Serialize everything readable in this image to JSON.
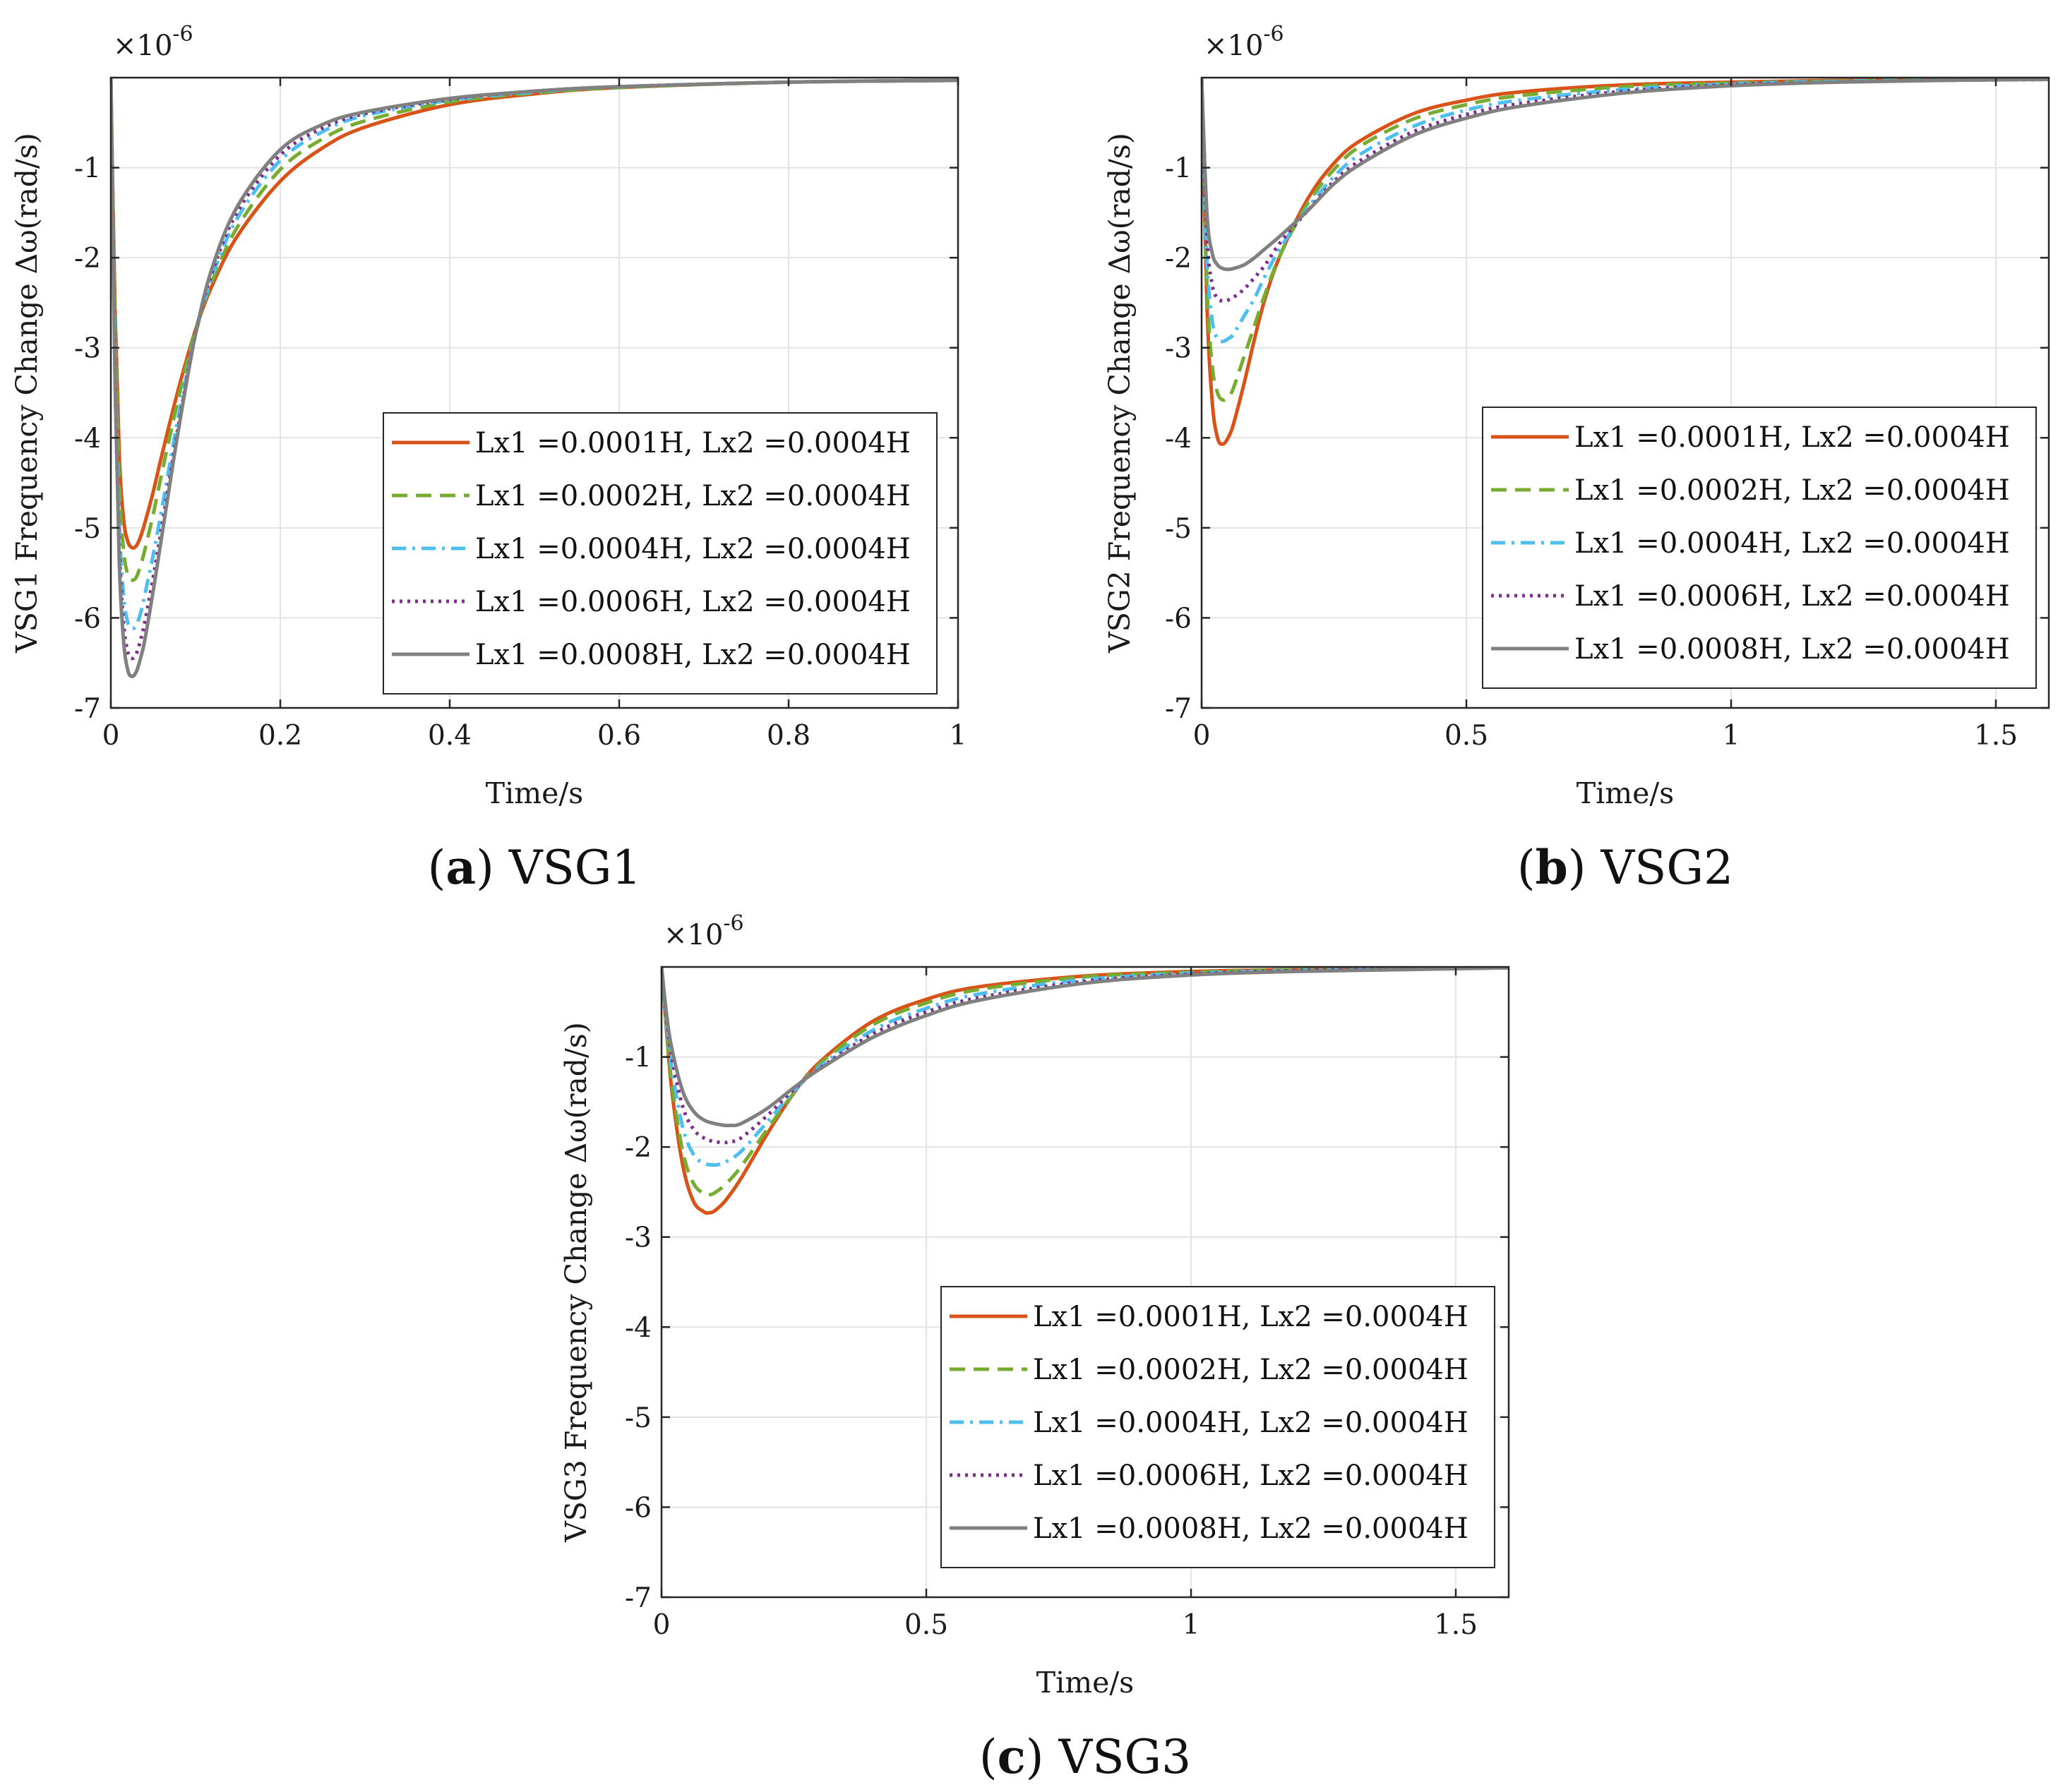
{
  "figure": {
    "colors": {
      "series": [
        "#D95319",
        "#77AC30",
        "#4DBEEE",
        "#7E2F8E",
        "#808080"
      ],
      "grid": "#e3e3e3",
      "axis": "#262626"
    }
  },
  "chart_data": [
    {
      "type": "line",
      "panel": "a",
      "caption_letter": "a",
      "caption_text": "VSG1",
      "title": "",
      "xlabel": "Time/s",
      "ylabel": "VSG1 Frequency Change Δω(rad/s)",
      "exponent_base": "×10",
      "exponent_power": "-6",
      "xlim": [
        0,
        1
      ],
      "ylim": [
        -7,
        0
      ],
      "xticks": [
        0,
        0.2,
        0.4,
        0.6,
        0.8,
        1
      ],
      "xtick_labels": [
        "0",
        "0.2",
        "0.4",
        "0.6",
        "0.8",
        "1"
      ],
      "yticks": [
        -7,
        -6,
        -5,
        -4,
        -3,
        -2,
        -1
      ],
      "ytick_labels": [
        "-7",
        "-6",
        "-5",
        "-4",
        "-3",
        "-2",
        "-1"
      ],
      "legend_position": "bottom-right",
      "series": [
        {
          "name": "Lx1 =0.0001H, Lx2 =0.0004H",
          "style": "solid",
          "x": [
            0,
            0.005,
            0.01,
            0.015,
            0.02,
            0.025,
            0.03,
            0.035,
            0.04,
            0.05,
            0.06,
            0.08,
            0.1,
            0.12,
            0.15,
            0.2,
            0.25,
            0.3,
            0.4,
            0.5,
            0.6,
            0.8,
            1.0
          ],
          "y": [
            0,
            -2.6,
            -4.2,
            -4.9,
            -5.15,
            -5.22,
            -5.2,
            -5.1,
            -4.95,
            -4.6,
            -4.2,
            -3.45,
            -2.8,
            -2.3,
            -1.75,
            -1.15,
            -0.78,
            -0.55,
            -0.3,
            -0.18,
            -0.11,
            -0.05,
            -0.03
          ]
        },
        {
          "name": "Lx1 =0.0002H, Lx2 =0.0004H",
          "style": "dashed",
          "x": [
            0,
            0.005,
            0.01,
            0.015,
            0.02,
            0.025,
            0.03,
            0.035,
            0.04,
            0.05,
            0.06,
            0.08,
            0.1,
            0.12,
            0.15,
            0.2,
            0.25,
            0.3,
            0.4,
            0.5,
            0.6,
            0.8,
            1.0
          ],
          "y": [
            0,
            -2.8,
            -4.5,
            -5.25,
            -5.52,
            -5.58,
            -5.55,
            -5.42,
            -5.25,
            -4.85,
            -4.4,
            -3.55,
            -2.8,
            -2.25,
            -1.65,
            -1.02,
            -0.68,
            -0.48,
            -0.27,
            -0.17,
            -0.11,
            -0.05,
            -0.03
          ]
        },
        {
          "name": "Lx1 =0.0004H, Lx2 =0.0004H",
          "style": "dashdot",
          "x": [
            0,
            0.005,
            0.01,
            0.015,
            0.02,
            0.025,
            0.03,
            0.035,
            0.04,
            0.05,
            0.06,
            0.08,
            0.1,
            0.12,
            0.15,
            0.2,
            0.25,
            0.3,
            0.4,
            0.5,
            0.6,
            0.8,
            1.0
          ],
          "y": [
            0,
            -3.1,
            -4.95,
            -5.75,
            -6.05,
            -6.12,
            -6.08,
            -5.95,
            -5.75,
            -5.3,
            -4.8,
            -3.75,
            -2.85,
            -2.2,
            -1.55,
            -0.92,
            -0.6,
            -0.42,
            -0.25,
            -0.16,
            -0.1,
            -0.05,
            -0.03
          ]
        },
        {
          "name": "Lx1 =0.0006H, Lx2 =0.0004H",
          "style": "dotted",
          "x": [
            0,
            0.005,
            0.01,
            0.015,
            0.02,
            0.025,
            0.03,
            0.035,
            0.04,
            0.05,
            0.06,
            0.08,
            0.1,
            0.12,
            0.15,
            0.2,
            0.25,
            0.3,
            0.4,
            0.5,
            0.6,
            0.8,
            1.0
          ],
          "y": [
            0,
            -3.3,
            -5.2,
            -6.05,
            -6.38,
            -6.45,
            -6.4,
            -6.25,
            -6.05,
            -5.55,
            -5.0,
            -3.85,
            -2.85,
            -2.15,
            -1.48,
            -0.86,
            -0.56,
            -0.4,
            -0.24,
            -0.15,
            -0.1,
            -0.05,
            -0.03
          ]
        },
        {
          "name": "Lx1 =0.0008H, Lx2 =0.0004H",
          "style": "solid",
          "x": [
            0,
            0.005,
            0.01,
            0.015,
            0.02,
            0.025,
            0.03,
            0.035,
            0.04,
            0.05,
            0.06,
            0.08,
            0.1,
            0.12,
            0.15,
            0.2,
            0.25,
            0.3,
            0.4,
            0.5,
            0.6,
            0.8,
            1.0
          ],
          "y": [
            0,
            -3.4,
            -5.4,
            -6.25,
            -6.58,
            -6.65,
            -6.6,
            -6.45,
            -6.25,
            -5.7,
            -5.1,
            -3.9,
            -2.85,
            -2.1,
            -1.42,
            -0.8,
            -0.52,
            -0.38,
            -0.23,
            -0.15,
            -0.1,
            -0.05,
            -0.03
          ]
        }
      ]
    },
    {
      "type": "line",
      "panel": "b",
      "caption_letter": "b",
      "caption_text": "VSG2",
      "title": "",
      "xlabel": "Time/s",
      "ylabel": "VSG2 Frequency Change Δω(rad/s)",
      "exponent_base": "×10",
      "exponent_power": "-6",
      "xlim": [
        0,
        1.6
      ],
      "ylim": [
        -7,
        0
      ],
      "xticks": [
        0,
        0.5,
        1,
        1.5
      ],
      "xtick_labels": [
        "0",
        "0.5",
        "1",
        "1.5"
      ],
      "yticks": [
        -7,
        -6,
        -5,
        -4,
        -3,
        -2,
        -1
      ],
      "ytick_labels": [
        "-7",
        "-6",
        "-5",
        "-4",
        "-3",
        "-2",
        "-1"
      ],
      "legend_position": "bottom-right",
      "series": [
        {
          "name": "Lx1 =0.0001H, Lx2 =0.0004H",
          "style": "solid",
          "x": [
            0,
            0.01,
            0.02,
            0.03,
            0.04,
            0.05,
            0.06,
            0.08,
            0.1,
            0.12,
            0.15,
            0.2,
            0.25,
            0.3,
            0.4,
            0.5,
            0.6,
            0.8,
            1.0,
            1.2,
            1.4,
            1.6
          ],
          "y": [
            0,
            -2.5,
            -3.6,
            -4.0,
            -4.07,
            -4.0,
            -3.85,
            -3.4,
            -2.9,
            -2.45,
            -1.95,
            -1.35,
            -0.95,
            -0.7,
            -0.4,
            -0.25,
            -0.16,
            -0.08,
            -0.05,
            -0.03,
            -0.02,
            -0.01
          ]
        },
        {
          "name": "Lx1 =0.0002H, Lx2 =0.0004H",
          "style": "dashed",
          "x": [
            0,
            0.01,
            0.02,
            0.03,
            0.04,
            0.05,
            0.06,
            0.08,
            0.1,
            0.12,
            0.15,
            0.2,
            0.25,
            0.3,
            0.4,
            0.5,
            0.6,
            0.8,
            1.0,
            1.2,
            1.4,
            1.6
          ],
          "y": [
            0,
            -2.3,
            -3.2,
            -3.5,
            -3.58,
            -3.55,
            -3.45,
            -3.1,
            -2.75,
            -2.4,
            -1.95,
            -1.4,
            -1.02,
            -0.76,
            -0.46,
            -0.3,
            -0.2,
            -0.1,
            -0.06,
            -0.04,
            -0.02,
            -0.01
          ]
        },
        {
          "name": "Lx1 =0.0004H, Lx2 =0.0004H",
          "style": "dashdot",
          "x": [
            0,
            0.01,
            0.02,
            0.03,
            0.04,
            0.05,
            0.06,
            0.08,
            0.1,
            0.12,
            0.15,
            0.2,
            0.25,
            0.3,
            0.4,
            0.5,
            0.6,
            0.8,
            1.0,
            1.2,
            1.4,
            1.6
          ],
          "y": [
            0,
            -2.0,
            -2.7,
            -2.9,
            -2.93,
            -2.9,
            -2.85,
            -2.65,
            -2.45,
            -2.2,
            -1.88,
            -1.45,
            -1.1,
            -0.85,
            -0.54,
            -0.36,
            -0.25,
            -0.13,
            -0.07,
            -0.04,
            -0.03,
            -0.02
          ]
        },
        {
          "name": "Lx1 =0.0006H, Lx2 =0.0004H",
          "style": "dotted",
          "x": [
            0,
            0.01,
            0.02,
            0.03,
            0.04,
            0.05,
            0.06,
            0.08,
            0.1,
            0.12,
            0.15,
            0.2,
            0.25,
            0.3,
            0.4,
            0.5,
            0.6,
            0.8,
            1.0,
            1.2,
            1.4,
            1.6
          ],
          "y": [
            0,
            -1.75,
            -2.3,
            -2.45,
            -2.48,
            -2.47,
            -2.44,
            -2.35,
            -2.22,
            -2.08,
            -1.82,
            -1.48,
            -1.15,
            -0.92,
            -0.6,
            -0.41,
            -0.29,
            -0.15,
            -0.08,
            -0.05,
            -0.03,
            -0.02
          ]
        },
        {
          "name": "Lx1 =0.0008H, Lx2 =0.0004H",
          "style": "solid",
          "x": [
            0,
            0.01,
            0.02,
            0.03,
            0.04,
            0.05,
            0.06,
            0.08,
            0.1,
            0.12,
            0.15,
            0.2,
            0.25,
            0.3,
            0.4,
            0.5,
            0.6,
            0.8,
            1.0,
            1.2,
            1.4,
            1.6
          ],
          "y": [
            0,
            -1.5,
            -1.95,
            -2.08,
            -2.12,
            -2.13,
            -2.12,
            -2.08,
            -2.0,
            -1.9,
            -1.75,
            -1.48,
            -1.18,
            -0.96,
            -0.64,
            -0.45,
            -0.32,
            -0.17,
            -0.09,
            -0.05,
            -0.03,
            -0.02
          ]
        }
      ]
    },
    {
      "type": "line",
      "panel": "c",
      "caption_letter": "c",
      "caption_text": "VSG3",
      "title": "",
      "xlabel": "Time/s",
      "ylabel": "VSG3 Frequency Change Δω(rad/s)",
      "exponent_base": "×10",
      "exponent_power": "-6",
      "xlim": [
        0,
        1.6
      ],
      "ylim": [
        -7,
        0
      ],
      "xticks": [
        0,
        0.5,
        1,
        1.5
      ],
      "xtick_labels": [
        "0",
        "0.5",
        "1",
        "1.5"
      ],
      "yticks": [
        -7,
        -6,
        -5,
        -4,
        -3,
        -2,
        -1
      ],
      "ytick_labels": [
        "-7",
        "-6",
        "-5",
        "-4",
        "-3",
        "-2",
        "-1"
      ],
      "legend_position": "bottom-right",
      "series": [
        {
          "name": "Lx1 =0.0001H, Lx2 =0.0004H",
          "style": "solid",
          "x": [
            0,
            0.01,
            0.02,
            0.04,
            0.06,
            0.08,
            0.09,
            0.1,
            0.12,
            0.15,
            0.2,
            0.25,
            0.3,
            0.4,
            0.5,
            0.6,
            0.8,
            1.0,
            1.2,
            1.4,
            1.6
          ],
          "y": [
            0,
            -0.75,
            -1.4,
            -2.2,
            -2.6,
            -2.72,
            -2.73,
            -2.71,
            -2.6,
            -2.35,
            -1.85,
            -1.4,
            -1.05,
            -0.6,
            -0.36,
            -0.22,
            -0.1,
            -0.05,
            -0.03,
            -0.02,
            -0.01
          ]
        },
        {
          "name": "Lx1 =0.0002H, Lx2 =0.0004H",
          "style": "dashed",
          "x": [
            0,
            0.01,
            0.02,
            0.04,
            0.06,
            0.08,
            0.09,
            0.1,
            0.12,
            0.15,
            0.2,
            0.25,
            0.3,
            0.4,
            0.5,
            0.6,
            0.8,
            1.0,
            1.2,
            1.4,
            1.6
          ],
          "y": [
            0,
            -0.72,
            -1.32,
            -2.05,
            -2.4,
            -2.52,
            -2.53,
            -2.51,
            -2.42,
            -2.22,
            -1.8,
            -1.4,
            -1.07,
            -0.64,
            -0.4,
            -0.25,
            -0.11,
            -0.06,
            -0.03,
            -0.02,
            -0.01
          ]
        },
        {
          "name": "Lx1 =0.0004H, Lx2 =0.0004H",
          "style": "dashdot",
          "x": [
            0,
            0.01,
            0.02,
            0.04,
            0.06,
            0.08,
            0.1,
            0.11,
            0.12,
            0.15,
            0.2,
            0.25,
            0.3,
            0.4,
            0.5,
            0.6,
            0.8,
            1.0,
            1.2,
            1.4,
            1.6
          ],
          "y": [
            0,
            -0.65,
            -1.15,
            -1.78,
            -2.08,
            -2.18,
            -2.2,
            -2.19,
            -2.17,
            -2.05,
            -1.72,
            -1.38,
            -1.1,
            -0.7,
            -0.46,
            -0.3,
            -0.14,
            -0.07,
            -0.04,
            -0.02,
            -0.01
          ]
        },
        {
          "name": "Lx1 =0.0006H, Lx2 =0.0004H",
          "style": "dotted",
          "x": [
            0,
            0.01,
            0.02,
            0.04,
            0.06,
            0.08,
            0.1,
            0.12,
            0.13,
            0.15,
            0.2,
            0.25,
            0.3,
            0.4,
            0.5,
            0.6,
            0.8,
            1.0,
            1.2,
            1.4,
            1.6
          ],
          "y": [
            0,
            -0.6,
            -1.02,
            -1.55,
            -1.8,
            -1.9,
            -1.94,
            -1.95,
            -1.94,
            -1.9,
            -1.65,
            -1.36,
            -1.12,
            -0.74,
            -0.5,
            -0.34,
            -0.16,
            -0.08,
            -0.04,
            -0.02,
            -0.01
          ]
        },
        {
          "name": "Lx1 =0.0008H, Lx2 =0.0004H",
          "style": "solid",
          "x": [
            0,
            0.01,
            0.02,
            0.04,
            0.06,
            0.08,
            0.1,
            0.12,
            0.13,
            0.15,
            0.2,
            0.25,
            0.3,
            0.4,
            0.5,
            0.6,
            0.8,
            1.0,
            1.2,
            1.4,
            1.6
          ],
          "y": [
            0,
            -0.55,
            -0.92,
            -1.38,
            -1.6,
            -1.7,
            -1.74,
            -1.76,
            -1.76,
            -1.74,
            -1.57,
            -1.34,
            -1.13,
            -0.78,
            -0.54,
            -0.37,
            -0.18,
            -0.09,
            -0.05,
            -0.03,
            -0.01
          ]
        }
      ]
    }
  ]
}
